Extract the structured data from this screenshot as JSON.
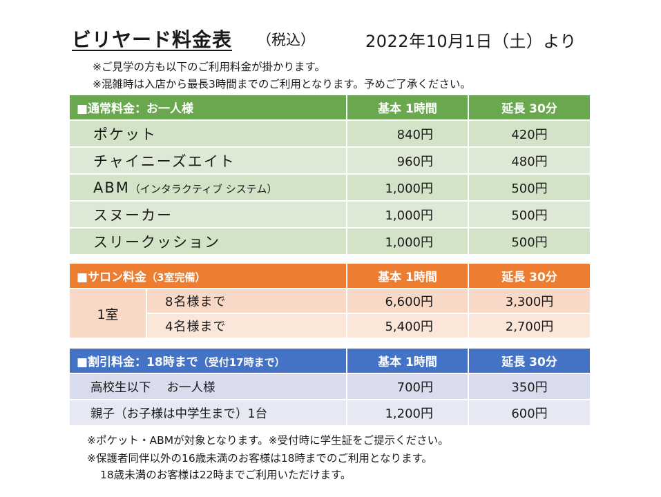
{
  "header": {
    "title": "ビリヤード料金表",
    "tax": "（税込）",
    "date": "2022年10月1日（土）より"
  },
  "notes_top": [
    "※ご見学の方も以下のご利用料金が掛かります。",
    "※混雑時は入店から最長3時間までのご利用となります。予めご了承ください。"
  ],
  "regular": {
    "heading": "■通常料金：お一人様",
    "col_basic": "基本 1時間",
    "col_ext": "延長 30分",
    "rows": [
      {
        "name": "ポケット",
        "suffix": "",
        "basic": "840円",
        "ext": "420円"
      },
      {
        "name": "チャイニーズエイト",
        "suffix": "",
        "basic": "960円",
        "ext": "480円"
      },
      {
        "name": "ABM",
        "suffix": "（インタラクティブ システム）",
        "basic": "1,000円",
        "ext": "500円"
      },
      {
        "name": "スヌーカー",
        "suffix": "",
        "basic": "1,000円",
        "ext": "500円"
      },
      {
        "name": "スリークッション",
        "suffix": "",
        "basic": "1,000円",
        "ext": "500円"
      }
    ]
  },
  "salon": {
    "heading": "■サロン料金",
    "heading_sub": "（3室完備）",
    "col_basic": "基本 1時間",
    "col_ext": "延長 30分",
    "room": "1室",
    "rows": [
      {
        "name": "8名様まで",
        "basic": "6,600円",
        "ext": "3,300円"
      },
      {
        "name": "4名様まで",
        "basic": "5,400円",
        "ext": "2,700円"
      }
    ]
  },
  "discount": {
    "heading": "■割引料金：18時まで",
    "heading_sub": "（受付17時まで）",
    "col_basic": "基本 1時間",
    "col_ext": "延長 30分",
    "rows": [
      {
        "name": "高校生以下　 お一人様",
        "basic": "700円",
        "ext": "350円"
      },
      {
        "name": "親子（お子様は中学生まで）1台",
        "basic": "1,200円",
        "ext": "600円"
      }
    ]
  },
  "notes_bottom": [
    "※ポケット・ABMが対象となります。※受付時に学生証をご提示ください。",
    "※保護者同伴以外の16歳未満のお客様は18時までのご利用となります。",
    "18歳未満のお客様は22時までご利用いただけます。"
  ],
  "colors": {
    "regular_header": "#6aa84f",
    "salon_header": "#ed7d31",
    "discount_header": "#4472c4"
  }
}
